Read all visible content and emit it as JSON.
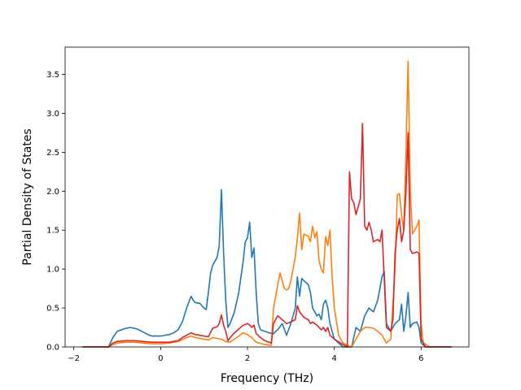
{
  "chart_data": {
    "type": "line",
    "title": "",
    "xlabel": "Frequency (THz)",
    "ylabel": "Partial Density of States",
    "xlim": [
      -2.2,
      7.1
    ],
    "ylim": [
      0,
      3.85
    ],
    "xticks": [
      -2,
      0,
      2,
      4,
      6
    ],
    "yticks": [
      0.0,
      0.5,
      1.0,
      1.5,
      2.0,
      2.5,
      3.0,
      3.5
    ],
    "xtick_labels": [
      "−2",
      "0",
      "2",
      "4",
      "6"
    ],
    "ytick_labels": [
      "0.0",
      "0.5",
      "1.0",
      "1.5",
      "2.0",
      "2.5",
      "3.0",
      "3.5"
    ],
    "grid": false,
    "legend": "none",
    "series": [
      {
        "color": "#1f77b4",
        "points": [
          [
            -1.8,
            0
          ],
          [
            -1.2,
            0
          ],
          [
            -1.1,
            0.12
          ],
          [
            -1.0,
            0.2
          ],
          [
            -0.9,
            0.22
          ],
          [
            -0.8,
            0.24
          ],
          [
            -0.7,
            0.25
          ],
          [
            -0.6,
            0.24
          ],
          [
            -0.5,
            0.22
          ],
          [
            -0.4,
            0.19
          ],
          [
            -0.3,
            0.16
          ],
          [
            -0.2,
            0.14
          ],
          [
            -0.1,
            0.14
          ],
          [
            0.0,
            0.14
          ],
          [
            0.1,
            0.15
          ],
          [
            0.2,
            0.16
          ],
          [
            0.3,
            0.18
          ],
          [
            0.4,
            0.22
          ],
          [
            0.5,
            0.32
          ],
          [
            0.6,
            0.5
          ],
          [
            0.7,
            0.65
          ],
          [
            0.75,
            0.6
          ],
          [
            0.8,
            0.57
          ],
          [
            0.9,
            0.56
          ],
          [
            1.0,
            0.5
          ],
          [
            1.05,
            0.48
          ],
          [
            1.1,
            0.7
          ],
          [
            1.15,
            0.95
          ],
          [
            1.2,
            1.05
          ],
          [
            1.3,
            1.15
          ],
          [
            1.35,
            1.3
          ],
          [
            1.4,
            2.02
          ],
          [
            1.45,
            1.2
          ],
          [
            1.5,
            0.6
          ],
          [
            1.55,
            0.25
          ],
          [
            1.6,
            0.3
          ],
          [
            1.7,
            0.45
          ],
          [
            1.8,
            0.7
          ],
          [
            1.9,
            1.1
          ],
          [
            1.95,
            1.35
          ],
          [
            2.0,
            1.4
          ],
          [
            2.05,
            1.6
          ],
          [
            2.1,
            1.15
          ],
          [
            2.15,
            1.27
          ],
          [
            2.2,
            0.7
          ],
          [
            2.25,
            0.3
          ],
          [
            2.3,
            0.22
          ],
          [
            2.4,
            0.2
          ],
          [
            2.5,
            0.18
          ],
          [
            2.6,
            0.17
          ],
          [
            2.65,
            0.2
          ],
          [
            2.7,
            0.22
          ],
          [
            2.8,
            0.3
          ],
          [
            2.9,
            0.15
          ],
          [
            3.0,
            0.3
          ],
          [
            3.1,
            0.5
          ],
          [
            3.15,
            0.9
          ],
          [
            3.2,
            0.65
          ],
          [
            3.25,
            0.88
          ],
          [
            3.3,
            0.85
          ],
          [
            3.4,
            0.8
          ],
          [
            3.45,
            0.7
          ],
          [
            3.5,
            0.5
          ],
          [
            3.55,
            0.45
          ],
          [
            3.6,
            0.4
          ],
          [
            3.65,
            0.42
          ],
          [
            3.7,
            0.35
          ],
          [
            3.75,
            0.55
          ],
          [
            3.8,
            0.6
          ],
          [
            3.85,
            0.5
          ],
          [
            3.9,
            0.3
          ],
          [
            4.0,
            0.1
          ],
          [
            4.2,
            0
          ],
          [
            4.4,
            0
          ],
          [
            4.5,
            0.25
          ],
          [
            4.6,
            0.2
          ],
          [
            4.7,
            0.4
          ],
          [
            4.8,
            0.5
          ],
          [
            4.9,
            0.45
          ],
          [
            5.0,
            0.6
          ],
          [
            5.1,
            0.9
          ],
          [
            5.15,
            0.97
          ],
          [
            5.2,
            0.3
          ],
          [
            5.3,
            0.2
          ],
          [
            5.4,
            0.3
          ],
          [
            5.5,
            0.35
          ],
          [
            5.55,
            0.55
          ],
          [
            5.6,
            0.2
          ],
          [
            5.65,
            0.4
          ],
          [
            5.7,
            0.7
          ],
          [
            5.75,
            0.25
          ],
          [
            5.8,
            0.3
          ],
          [
            5.9,
            0.32
          ],
          [
            5.95,
            0.25
          ],
          [
            6.0,
            0.05
          ],
          [
            6.1,
            0
          ],
          [
            6.7,
            0
          ]
        ]
      },
      {
        "color": "#ff7f0e",
        "points": [
          [
            -1.8,
            0
          ],
          [
            -1.2,
            0
          ],
          [
            -1.1,
            0.03
          ],
          [
            -1.0,
            0.05
          ],
          [
            -0.8,
            0.06
          ],
          [
            -0.6,
            0.06
          ],
          [
            -0.4,
            0.05
          ],
          [
            -0.2,
            0.04
          ],
          [
            0.0,
            0.04
          ],
          [
            0.2,
            0.05
          ],
          [
            0.4,
            0.07
          ],
          [
            0.6,
            0.12
          ],
          [
            0.7,
            0.14
          ],
          [
            0.8,
            0.12
          ],
          [
            1.0,
            0.1
          ],
          [
            1.1,
            0.09
          ],
          [
            1.2,
            0.12
          ],
          [
            1.3,
            0.11
          ],
          [
            1.4,
            0.1
          ],
          [
            1.5,
            0.07
          ],
          [
            1.6,
            0.06
          ],
          [
            1.7,
            0.1
          ],
          [
            1.8,
            0.14
          ],
          [
            1.9,
            0.18
          ],
          [
            2.0,
            0.16
          ],
          [
            2.1,
            0.12
          ],
          [
            2.2,
            0.06
          ],
          [
            2.4,
            0.03
          ],
          [
            2.55,
            0.02
          ],
          [
            2.6,
            0.5
          ],
          [
            2.7,
            0.8
          ],
          [
            2.75,
            0.95
          ],
          [
            2.8,
            0.85
          ],
          [
            2.85,
            0.75
          ],
          [
            2.9,
            0.73
          ],
          [
            2.95,
            0.75
          ],
          [
            3.0,
            0.85
          ],
          [
            3.1,
            1.15
          ],
          [
            3.15,
            1.4
          ],
          [
            3.2,
            1.72
          ],
          [
            3.25,
            1.25
          ],
          [
            3.3,
            1.45
          ],
          [
            3.4,
            1.42
          ],
          [
            3.45,
            1.35
          ],
          [
            3.5,
            1.55
          ],
          [
            3.55,
            1.4
          ],
          [
            3.6,
            1.48
          ],
          [
            3.65,
            1.1
          ],
          [
            3.7,
            1.0
          ],
          [
            3.75,
            0.95
          ],
          [
            3.8,
            1.42
          ],
          [
            3.85,
            1.3
          ],
          [
            3.9,
            1.5
          ],
          [
            3.95,
            0.9
          ],
          [
            4.0,
            0.5
          ],
          [
            4.1,
            0.15
          ],
          [
            4.2,
            0.05
          ],
          [
            4.3,
            0.02
          ],
          [
            4.4,
            0
          ],
          [
            4.5,
            0.1
          ],
          [
            4.6,
            0.2
          ],
          [
            4.7,
            0.25
          ],
          [
            4.8,
            0.25
          ],
          [
            4.9,
            0.24
          ],
          [
            5.0,
            0.2
          ],
          [
            5.1,
            0.15
          ],
          [
            5.2,
            0.05
          ],
          [
            5.3,
            0.1
          ],
          [
            5.4,
            1.0
          ],
          [
            5.45,
            1.95
          ],
          [
            5.5,
            1.97
          ],
          [
            5.55,
            1.7
          ],
          [
            5.6,
            1.5
          ],
          [
            5.65,
            2.5
          ],
          [
            5.7,
            3.67
          ],
          [
            5.75,
            2.0
          ],
          [
            5.8,
            1.45
          ],
          [
            5.9,
            1.55
          ],
          [
            5.95,
            1.63
          ],
          [
            6.0,
            0.3
          ],
          [
            6.05,
            0.05
          ],
          [
            6.2,
            0
          ],
          [
            6.7,
            0
          ]
        ]
      },
      {
        "color": "#d62728",
        "points": [
          [
            -1.8,
            0
          ],
          [
            -1.2,
            0
          ],
          [
            -1.1,
            0.05
          ],
          [
            -1.0,
            0.07
          ],
          [
            -0.8,
            0.08
          ],
          [
            -0.6,
            0.08
          ],
          [
            -0.4,
            0.07
          ],
          [
            -0.2,
            0.06
          ],
          [
            0.0,
            0.06
          ],
          [
            0.2,
            0.06
          ],
          [
            0.4,
            0.08
          ],
          [
            0.5,
            0.12
          ],
          [
            0.6,
            0.15
          ],
          [
            0.7,
            0.18
          ],
          [
            0.8,
            0.16
          ],
          [
            0.9,
            0.15
          ],
          [
            1.0,
            0.14
          ],
          [
            1.1,
            0.13
          ],
          [
            1.2,
            0.24
          ],
          [
            1.3,
            0.26
          ],
          [
            1.35,
            0.3
          ],
          [
            1.4,
            0.41
          ],
          [
            1.45,
            0.28
          ],
          [
            1.5,
            0.2
          ],
          [
            1.55,
            0.08
          ],
          [
            1.6,
            0.12
          ],
          [
            1.7,
            0.18
          ],
          [
            1.8,
            0.23
          ],
          [
            1.9,
            0.28
          ],
          [
            2.0,
            0.3
          ],
          [
            2.05,
            0.28
          ],
          [
            2.1,
            0.25
          ],
          [
            2.15,
            0.28
          ],
          [
            2.2,
            0.17
          ],
          [
            2.3,
            0.12
          ],
          [
            2.4,
            0.08
          ],
          [
            2.55,
            0.05
          ],
          [
            2.6,
            0.3
          ],
          [
            2.7,
            0.4
          ],
          [
            2.8,
            0.35
          ],
          [
            2.9,
            0.3
          ],
          [
            3.0,
            0.32
          ],
          [
            3.1,
            0.35
          ],
          [
            3.15,
            0.53
          ],
          [
            3.2,
            0.45
          ],
          [
            3.3,
            0.38
          ],
          [
            3.4,
            0.35
          ],
          [
            3.45,
            0.3
          ],
          [
            3.5,
            0.32
          ],
          [
            3.55,
            0.3
          ],
          [
            3.6,
            0.28
          ],
          [
            3.7,
            0.22
          ],
          [
            3.75,
            0.25
          ],
          [
            3.8,
            0.2
          ],
          [
            3.85,
            0.25
          ],
          [
            3.9,
            0.15
          ],
          [
            4.0,
            0.1
          ],
          [
            4.2,
            0.03
          ],
          [
            4.3,
            0
          ],
          [
            4.35,
            2.25
          ],
          [
            4.4,
            1.9
          ],
          [
            4.45,
            1.85
          ],
          [
            4.5,
            1.7
          ],
          [
            4.6,
            1.9
          ],
          [
            4.65,
            2.87
          ],
          [
            4.7,
            1.55
          ],
          [
            4.75,
            1.5
          ],
          [
            4.8,
            1.6
          ],
          [
            4.85,
            1.5
          ],
          [
            4.9,
            1.35
          ],
          [
            5.0,
            1.38
          ],
          [
            5.05,
            1.35
          ],
          [
            5.1,
            1.5
          ],
          [
            5.2,
            0.25
          ],
          [
            5.3,
            0.2
          ],
          [
            5.35,
            0.35
          ],
          [
            5.4,
            1.2
          ],
          [
            5.45,
            1.5
          ],
          [
            5.5,
            1.65
          ],
          [
            5.55,
            1.35
          ],
          [
            5.6,
            1.5
          ],
          [
            5.65,
            2.0
          ],
          [
            5.7,
            2.75
          ],
          [
            5.75,
            1.25
          ],
          [
            5.8,
            1.2
          ],
          [
            5.9,
            1.22
          ],
          [
            5.95,
            1.2
          ],
          [
            6.0,
            0.1
          ],
          [
            6.1,
            0
          ],
          [
            6.7,
            0
          ]
        ]
      }
    ]
  }
}
